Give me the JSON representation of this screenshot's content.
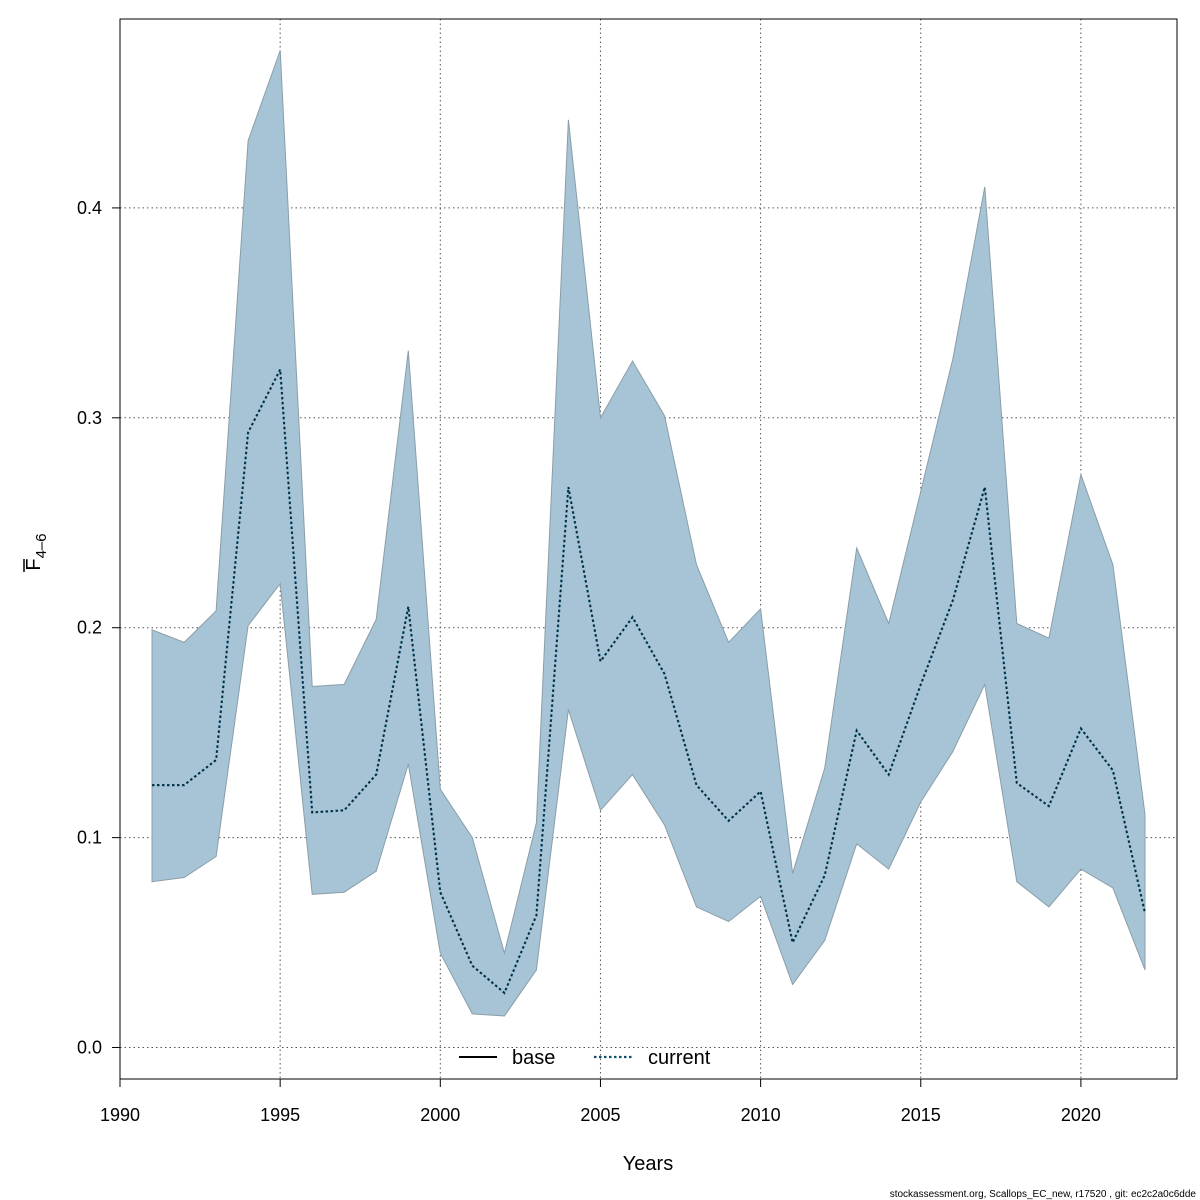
{
  "chart_data": {
    "type": "line",
    "xlabel": "Years",
    "ylabel": {
      "main": "F",
      "subscript": "4–6"
    },
    "xlim": [
      1990,
      2023
    ],
    "ylim": [
      -0.015,
      0.49
    ],
    "xticks": [
      1990,
      1995,
      2000,
      2005,
      2010,
      2015,
      2020
    ],
    "yticks": [
      0.0,
      0.1,
      0.2,
      0.3,
      0.4
    ],
    "grid": true,
    "legend": {
      "placement": "bottom",
      "entries": [
        {
          "label": "base",
          "style": "solid",
          "color": "#000000"
        },
        {
          "label": "current",
          "style": "dotted",
          "color": "#0b4f6c"
        }
      ]
    },
    "band_color": "#a6c4d5",
    "x": [
      1991,
      1992,
      1993,
      1994,
      1995,
      1996,
      1997,
      1998,
      1999,
      2000,
      2001,
      2002,
      2003,
      2004,
      2005,
      2006,
      2007,
      2008,
      2009,
      2010,
      2011,
      2012,
      2013,
      2014,
      2015,
      2016,
      2017,
      2018,
      2019,
      2020,
      2021,
      2022
    ],
    "series": [
      {
        "name": "current",
        "values": [
          0.125,
          0.125,
          0.137,
          0.293,
          0.323,
          0.112,
          0.113,
          0.13,
          0.21,
          0.074,
          0.039,
          0.026,
          0.063,
          0.267,
          0.184,
          0.205,
          0.178,
          0.125,
          0.108,
          0.122,
          0.05,
          0.082,
          0.151,
          0.13,
          0.173,
          0.213,
          0.267,
          0.126,
          0.115,
          0.152,
          0.132,
          0.064
        ],
        "lower": [
          0.079,
          0.081,
          0.091,
          0.201,
          0.221,
          0.073,
          0.074,
          0.084,
          0.135,
          0.045,
          0.016,
          0.015,
          0.037,
          0.161,
          0.113,
          0.13,
          0.106,
          0.067,
          0.06,
          0.072,
          0.03,
          0.051,
          0.097,
          0.085,
          0.117,
          0.141,
          0.173,
          0.079,
          0.067,
          0.085,
          0.076,
          0.037
        ],
        "upper": [
          0.199,
          0.193,
          0.208,
          0.432,
          0.475,
          0.172,
          0.173,
          0.204,
          0.332,
          0.123,
          0.1,
          0.045,
          0.107,
          0.442,
          0.3,
          0.327,
          0.301,
          0.23,
          0.193,
          0.209,
          0.083,
          0.133,
          0.238,
          0.202,
          0.265,
          0.328,
          0.41,
          0.202,
          0.195,
          0.273,
          0.23,
          0.111
        ]
      }
    ]
  },
  "footer": {
    "text": "stockassessment.org, Scallops_EC_new, r17520 , git: ec2c2a0c6dde"
  }
}
